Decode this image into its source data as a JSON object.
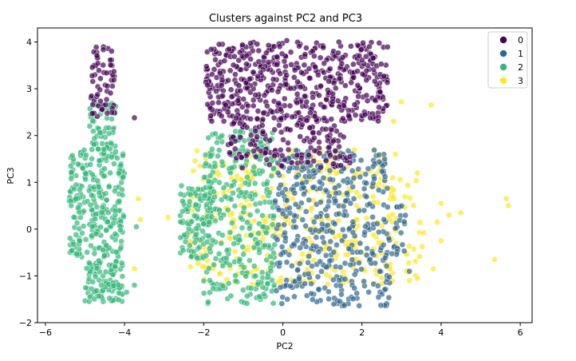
{
  "chart_data": {
    "type": "scatter",
    "title": "Clusters against PC2 and PC3",
    "xlabel": "PC2",
    "ylabel": "PC3",
    "xlim": [
      -6.2,
      6.3
    ],
    "ylim": [
      -2.0,
      4.3
    ],
    "xticks": [
      -6,
      -4,
      -2,
      0,
      2,
      4,
      6
    ],
    "yticks": [
      -2,
      -1,
      0,
      1,
      2,
      3,
      4
    ],
    "legend": {
      "placement": "top-right",
      "entries": [
        "0",
        "1",
        "2",
        "3"
      ]
    },
    "grid": false,
    "point_alpha": 0.7,
    "series": [
      {
        "name": "0",
        "color": "#440154",
        "regions": [
          {
            "x": [
              -4.85,
              -4.25
            ],
            "y": [
              2.4,
              3.9
            ],
            "count": 60
          },
          {
            "x": [
              -1.95,
              2.65
            ],
            "y": [
              2.3,
              4.0
            ],
            "count": 520
          },
          {
            "x": [
              -1.4,
              1.6
            ],
            "y": [
              1.6,
              2.4
            ],
            "count": 120
          },
          {
            "x": [
              -1.2,
              1.8
            ],
            "y": [
              1.3,
              1.6
            ],
            "count": 40
          }
        ],
        "points": [
          {
            "x": -3.75,
            "y": 2.38
          },
          {
            "x": 0.1,
            "y": 4.03
          }
        ]
      },
      {
        "name": "1",
        "color": "#31688e",
        "regions": [
          {
            "x": [
              -0.2,
              2.7
            ],
            "y": [
              -1.65,
              1.7
            ],
            "count": 420
          },
          {
            "x": [
              2.6,
              3.1
            ],
            "y": [
              -0.6,
              0.5
            ],
            "count": 25
          }
        ],
        "points": [
          {
            "x": 3.2,
            "y": -0.9
          }
        ]
      },
      {
        "name": "2",
        "color": "#35b779",
        "regions": [
          {
            "x": [
              -5.4,
              -4.0
            ],
            "y": [
              -0.6,
              1.7
            ],
            "count": 260
          },
          {
            "x": [
              -5.0,
              -4.05
            ],
            "y": [
              -1.55,
              -0.6
            ],
            "count": 110
          },
          {
            "x": [
              -4.9,
              -4.2
            ],
            "y": [
              1.7,
              2.7
            ],
            "count": 60
          },
          {
            "x": [
              -2.6,
              -1.8
            ],
            "y": [
              -0.65,
              0.95
            ],
            "count": 110
          },
          {
            "x": [
              -2.0,
              -0.2
            ],
            "y": [
              -1.6,
              2.1
            ],
            "count": 320
          }
        ],
        "points": [
          {
            "x": -3.7,
            "y": 0.05
          },
          {
            "x": -3.75,
            "y": -1.2
          },
          {
            "x": -3.95,
            "y": -1.35
          }
        ]
      },
      {
        "name": "3",
        "color": "#fde725",
        "regions": [
          {
            "x": [
              -2.4,
              2.9
            ],
            "y": [
              -1.2,
              1.7
            ],
            "count": 380
          },
          {
            "x": [
              2.7,
              3.6
            ],
            "y": [
              -1.0,
              1.3
            ],
            "count": 30
          }
        ],
        "points": [
          {
            "x": 3.75,
            "y": 2.65
          },
          {
            "x": 3.0,
            "y": 2.72
          },
          {
            "x": 2.8,
            "y": 2.3
          },
          {
            "x": 3.4,
            "y": 1.2
          },
          {
            "x": 4.0,
            "y": 0.55
          },
          {
            "x": 4.2,
            "y": 0.3
          },
          {
            "x": 4.5,
            "y": 0.35
          },
          {
            "x": 3.9,
            "y": 0.15
          },
          {
            "x": 4.0,
            "y": -0.25
          },
          {
            "x": 3.8,
            "y": -0.85
          },
          {
            "x": 3.4,
            "y": -1.05
          },
          {
            "x": 3.2,
            "y": -1.1
          },
          {
            "x": 5.35,
            "y": -0.65
          },
          {
            "x": 5.65,
            "y": 0.65
          },
          {
            "x": 5.7,
            "y": 0.5
          },
          {
            "x": -3.65,
            "y": 0.65
          },
          {
            "x": -2.9,
            "y": 0.25
          },
          {
            "x": -3.75,
            "y": -0.85
          },
          {
            "x": -3.6,
            "y": 0.2
          }
        ]
      }
    ]
  }
}
